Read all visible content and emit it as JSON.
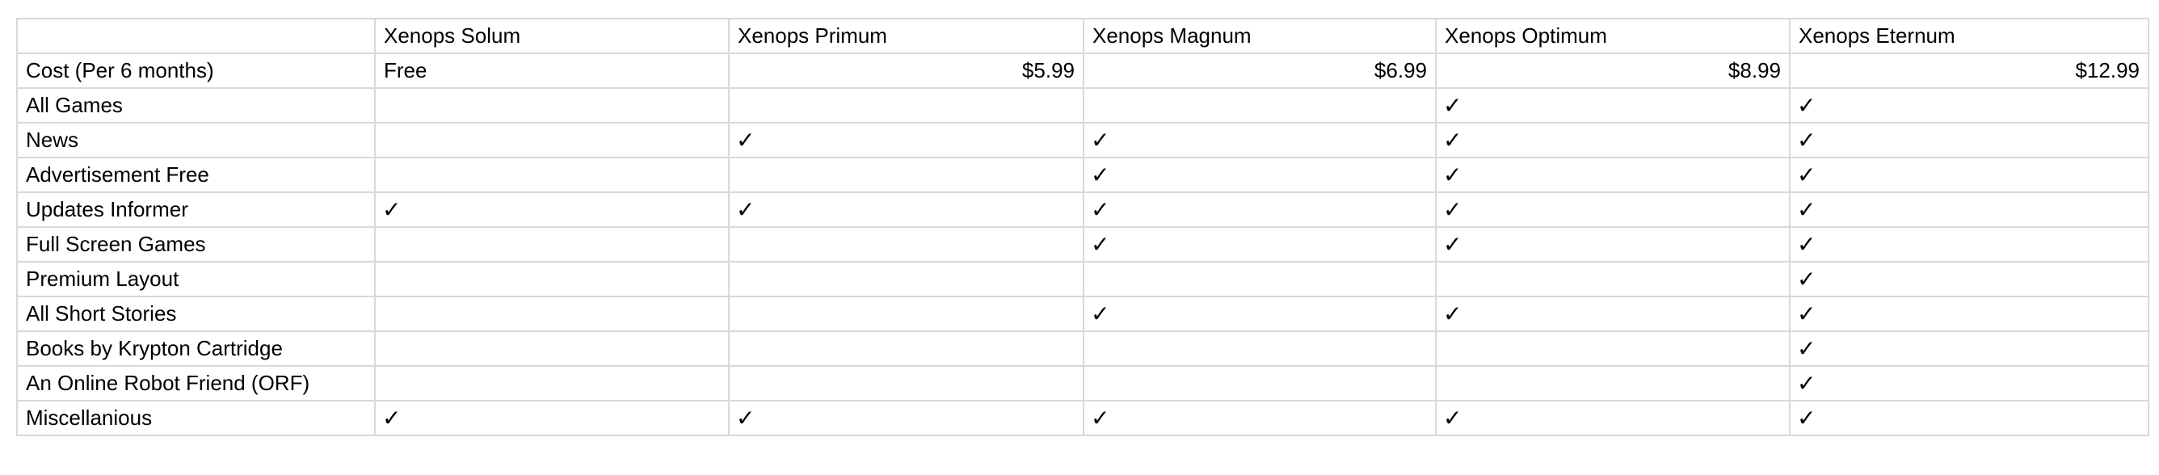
{
  "table": {
    "corner": "",
    "headers": [
      "Xenops Solum",
      "Xenops Primum",
      "Xenops Magnum",
      "Xenops Optimum",
      "Xenops Eternum"
    ],
    "cost_row": {
      "label": "Cost (Per 6 months)",
      "values": [
        "Free",
        "$5.99",
        "$6.99",
        "$8.99",
        "$12.99"
      ]
    },
    "check_mark": "✓",
    "features": [
      {
        "label": "All Games",
        "checks": [
          false,
          false,
          false,
          true,
          true
        ]
      },
      {
        "label": "News",
        "checks": [
          false,
          true,
          true,
          true,
          true
        ]
      },
      {
        "label": "Advertisement Free",
        "checks": [
          false,
          false,
          true,
          true,
          true
        ]
      },
      {
        "label": "Updates Informer",
        "checks": [
          true,
          true,
          true,
          true,
          true
        ]
      },
      {
        "label": "Full Screen Games",
        "checks": [
          false,
          false,
          true,
          true,
          true
        ]
      },
      {
        "label": "Premium Layout",
        "checks": [
          false,
          false,
          false,
          false,
          true
        ]
      },
      {
        "label": "All Short Stories",
        "checks": [
          false,
          false,
          true,
          true,
          true
        ]
      },
      {
        "label": "Books by Krypton Cartridge",
        "checks": [
          false,
          false,
          false,
          false,
          true
        ]
      },
      {
        "label": "An Online Robot Friend (ORF)",
        "checks": [
          false,
          false,
          false,
          false,
          true
        ]
      },
      {
        "label": "Miscellanious",
        "checks": [
          true,
          true,
          true,
          true,
          true
        ]
      }
    ]
  }
}
